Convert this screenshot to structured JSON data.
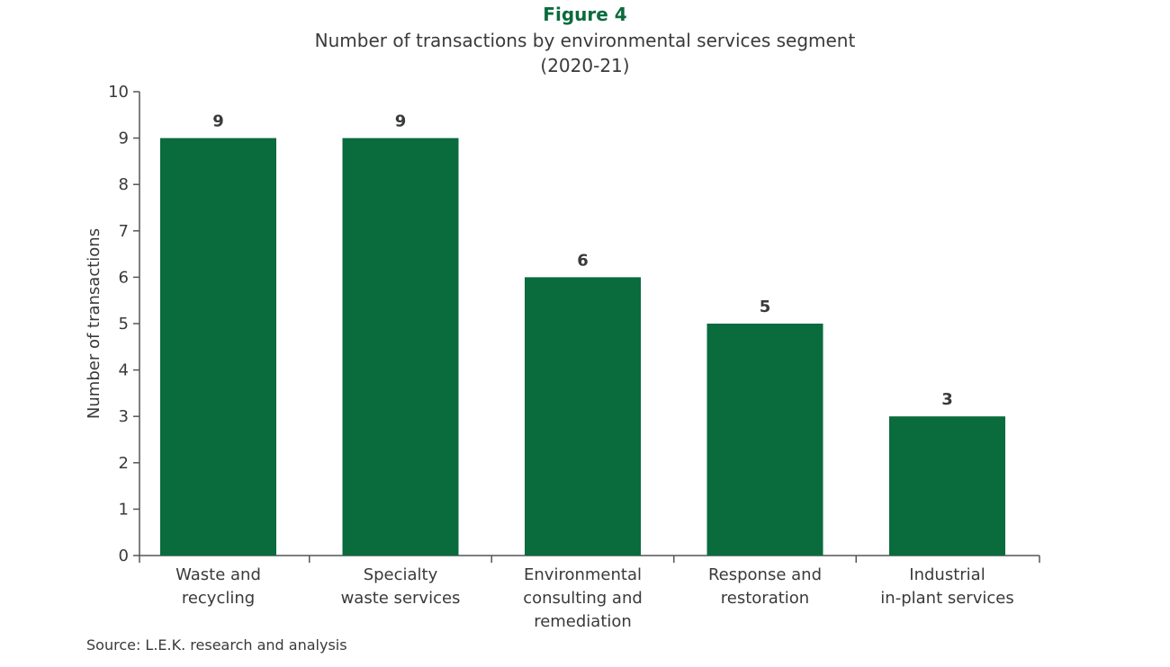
{
  "chart_data": {
    "type": "bar",
    "figure_label": "Figure 4",
    "title": "Number of transactions by environmental services segment",
    "subtitle": "(2020-21)",
    "xlabel": "",
    "ylabel": "Number of transactions",
    "ylim": [
      0,
      10
    ],
    "yticks": [
      "0",
      "1",
      "2",
      "3",
      "4",
      "5",
      "6",
      "7",
      "8",
      "9",
      "10"
    ],
    "categories": [
      [
        "Waste and",
        "recycling"
      ],
      [
        "Specialty",
        "waste services"
      ],
      [
        "Environmental",
        "consulting and",
        "remediation"
      ],
      [
        "Response and",
        "restoration"
      ],
      [
        "Industrial",
        "in-plant services"
      ]
    ],
    "values": [
      9,
      9,
      6,
      5,
      3
    ],
    "data_labels": [
      "9",
      "9",
      "6",
      "5",
      "3"
    ],
    "grid": false,
    "legend": "none",
    "source": "Source: L.E.K. research and analysis",
    "colors": {
      "bar": "#0a6b3d",
      "figure_label": "#0a6b3d",
      "text": "#3a3a3a",
      "axis": "#555555"
    }
  }
}
